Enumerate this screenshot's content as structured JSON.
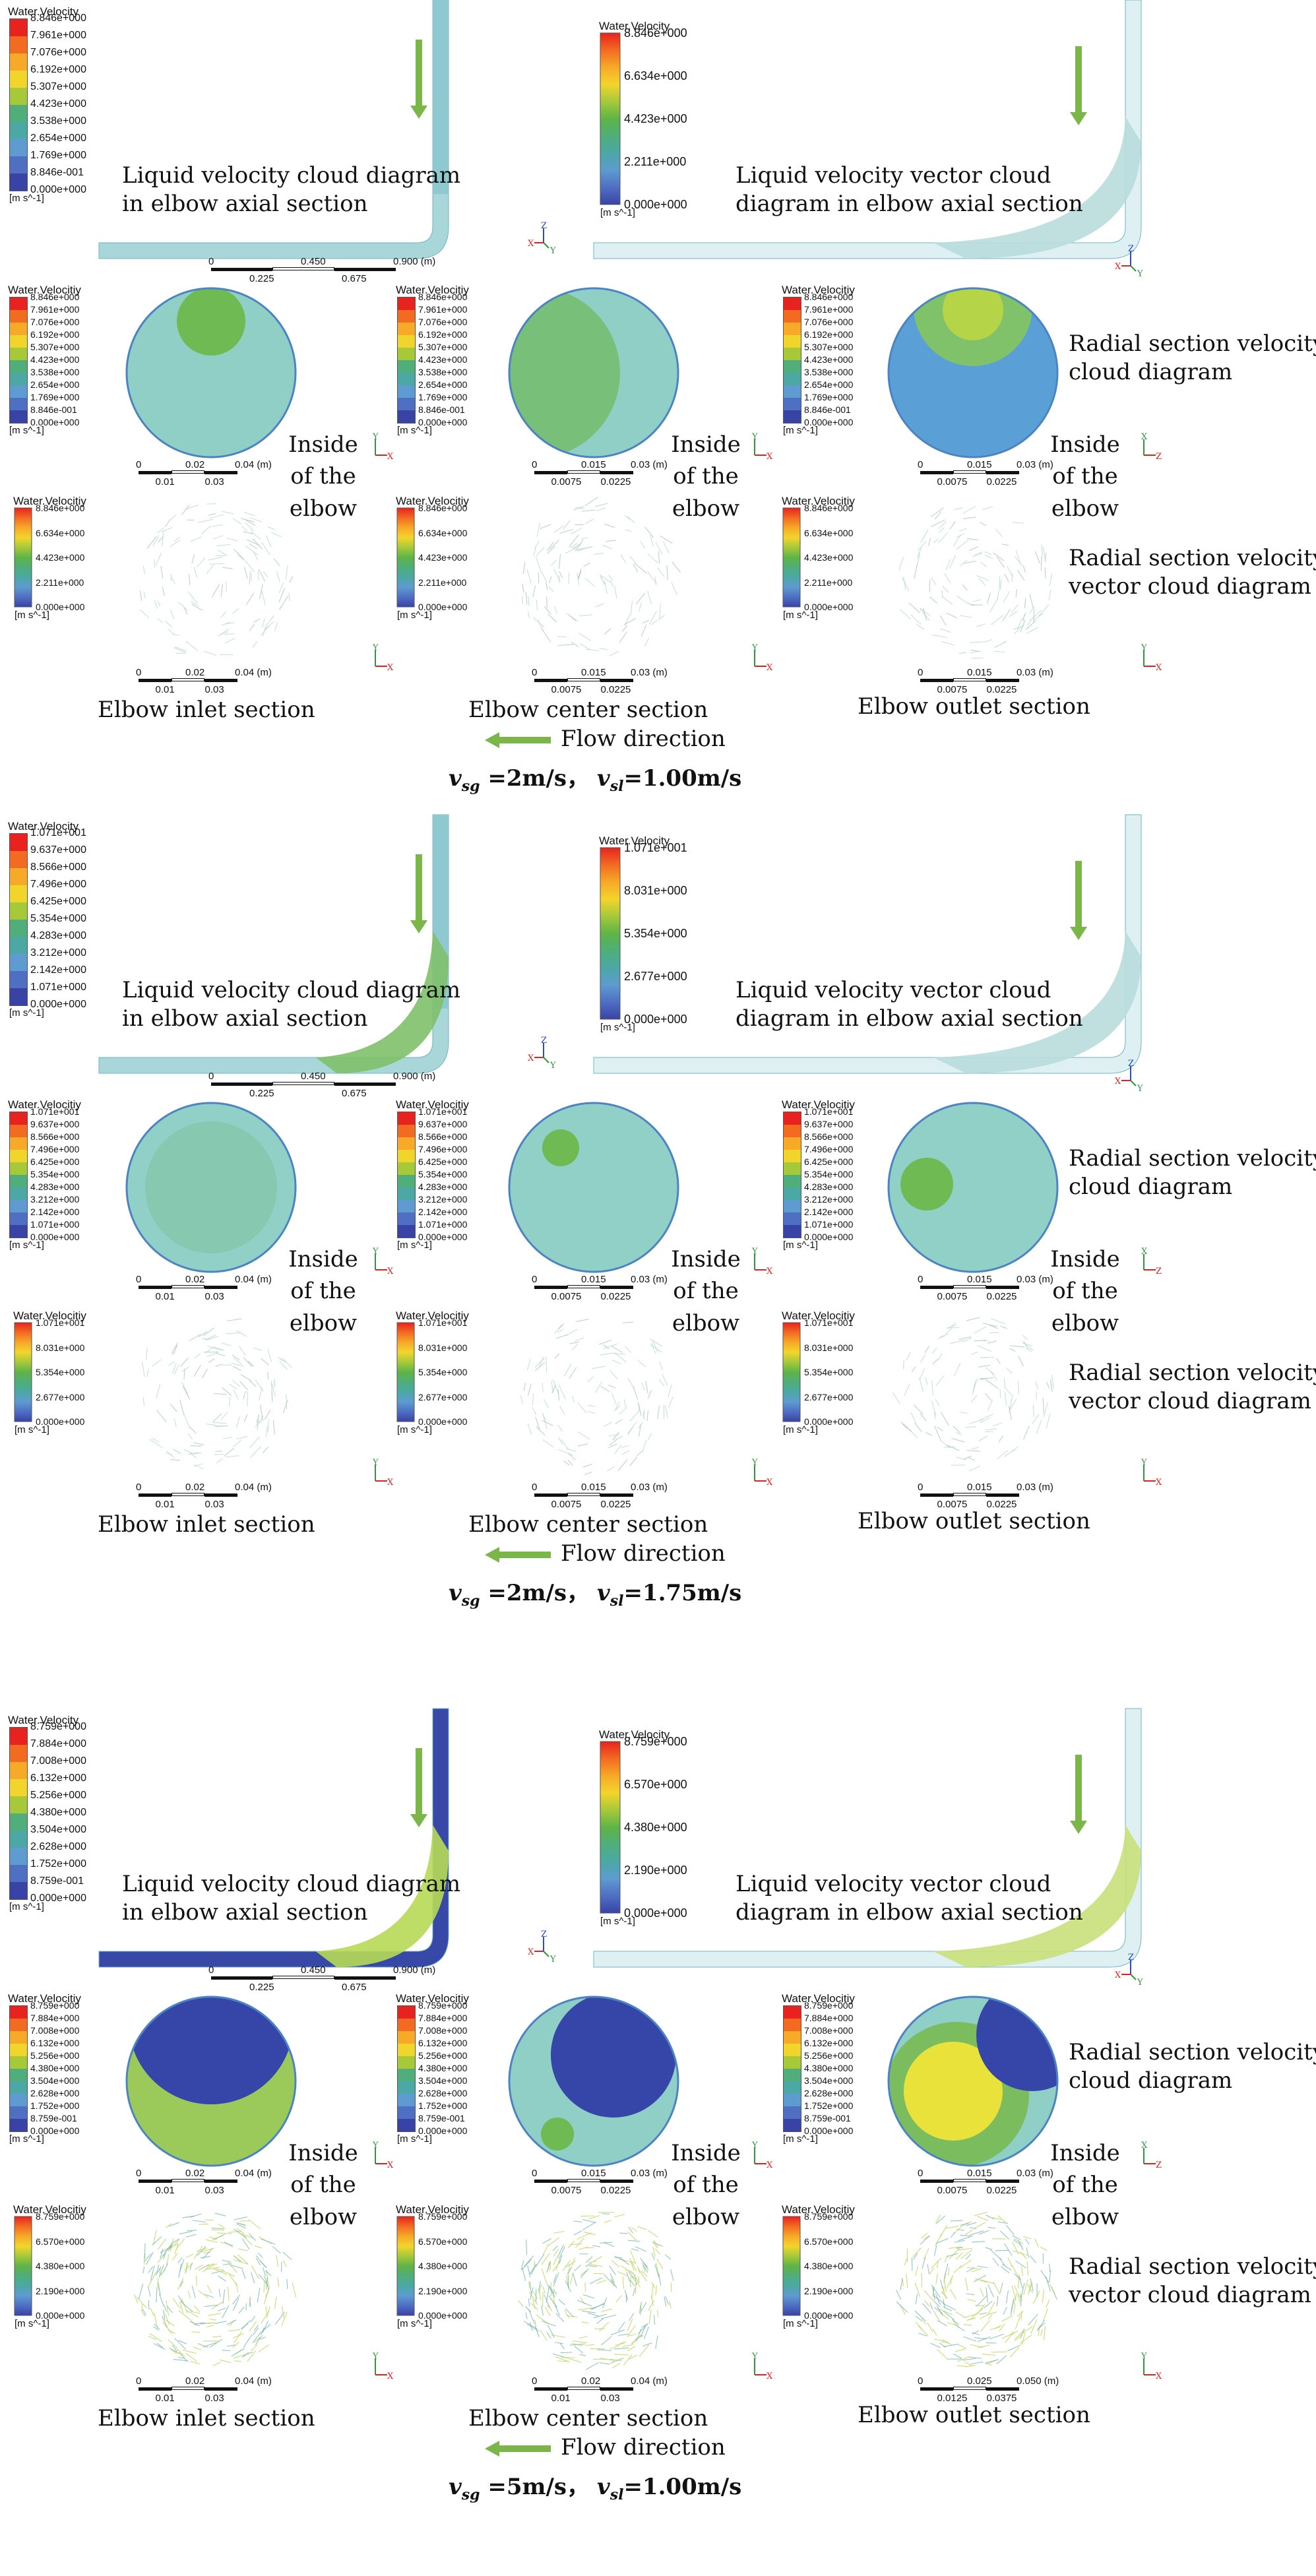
{
  "legend": {
    "title_axial": "Water.Velocity",
    "title_section": "Water.Velocitiy",
    "unit": "[m s^-1]"
  },
  "labels": {
    "axial_cloud": [
      "Liquid velocity cloud diagram",
      "in elbow axial section"
    ],
    "axial_vector": [
      "Liquid velocity vector cloud",
      "diagram in elbow axial section"
    ],
    "radial_cloud": [
      "Radial section velocity",
      "cloud diagram"
    ],
    "radial_vector": [
      "Radial section velocity",
      "vector cloud diagram"
    ],
    "inside": [
      "Inside",
      "of the",
      "elbow"
    ],
    "inlet": "Elbow inlet section",
    "center": "Elbow center section",
    "outlet": "Elbow outlet section",
    "flow": "Flow direction"
  },
  "axial_scale": {
    "top": [
      "0",
      "0.450",
      "0.900 (m)"
    ],
    "bottom": [
      "0.225",
      "0.675"
    ]
  },
  "scales": {
    "inlet": {
      "top": [
        "0",
        "0.02",
        "0.04 (m)"
      ],
      "bottom": [
        "0.01",
        "0.03"
      ]
    },
    "sm": {
      "top": [
        "0",
        "0.015",
        "0.03 (m)"
      ],
      "bottom": [
        "0.0075",
        "0.0225"
      ]
    },
    "inlet_g3": {
      "top": [
        "0",
        "0.02",
        "0.04 (m)"
      ],
      "bottom": [
        "0.01",
        "0.03"
      ]
    },
    "center_g3": {
      "top": [
        "0",
        "0.02",
        "0.04 (m)"
      ],
      "bottom": [
        "0.01",
        "0.03"
      ]
    },
    "outlet_g3": {
      "top": [
        "0",
        "0.025",
        "0.050 (m)"
      ],
      "bottom": [
        "0.0125",
        "0.0375"
      ]
    }
  },
  "axes_letters": {
    "z": "Z",
    "x": "X",
    "y": "Y"
  },
  "colors": {
    "scale": [
      "#e8231f",
      "#f26b21",
      "#f7a928",
      "#f2d52b",
      "#a6c93a",
      "#5fb446",
      "#4fae7a",
      "#4ba8a5",
      "#5e9bd0",
      "#4f6fc3",
      "#3943a6"
    ],
    "pipe_light": "#a9d6d9",
    "pipe_dark": "#3748a6",
    "green_arrow": "#7ab648",
    "outline": "#4b83c4"
  },
  "groups": [
    {
      "equation": {
        "vsg": "=2m/s，",
        "vsl": "=1.00m/s"
      },
      "axial_ticks": [
        "8.846e+000",
        "7.961e+000",
        "7.076e+000",
        "6.192e+000",
        "5.307e+000",
        "4.423e+000",
        "3.538e+000",
        "2.654e+000",
        "1.769e+000",
        "8.846e-001",
        "0.000e+000"
      ],
      "vector_ticks": [
        "8.846e+000",
        "6.634e+000",
        "4.423e+000",
        "2.211e+000",
        "0.000e+000"
      ],
      "section_ticks": [
        "8.846e+000",
        "7.961e+000",
        "7.076e+000",
        "6.192e+000",
        "5.307e+000",
        "4.423e+000",
        "3.538e+000",
        "2.654e+000",
        "1.769e+000",
        "8.846e-001",
        "0.000e+000"
      ],
      "section_vec_ticks": [
        "8.846e+000",
        "6.634e+000",
        "4.423e+000",
        "2.211e+000",
        "0.000e+000"
      ]
    },
    {
      "equation": {
        "vsg": "=2m/s，",
        "vsl": "=1.75m/s"
      },
      "axial_ticks": [
        "1.071e+001",
        "9.637e+000",
        "8.566e+000",
        "7.496e+000",
        "6.425e+000",
        "5.354e+000",
        "4.283e+000",
        "3.212e+000",
        "2.142e+000",
        "1.071e+000",
        "0.000e+000"
      ],
      "vector_ticks": [
        "1.071e+001",
        "8.031e+000",
        "5.354e+000",
        "2.677e+000",
        "0.000e+000"
      ],
      "section_ticks": [
        "1.071e+001",
        "9.637e+000",
        "8.566e+000",
        "7.496e+000",
        "6.425e+000",
        "5.354e+000",
        "4.283e+000",
        "3.212e+000",
        "2.142e+000",
        "1.071e+000",
        "0.000e+000"
      ],
      "section_vec_ticks": [
        "1.071e+001",
        "8.031e+000",
        "5.354e+000",
        "2.677e+000",
        "0.000e+000"
      ]
    },
    {
      "equation": {
        "vsg": "=5m/s，",
        "vsl": "=1.00m/s"
      },
      "axial_ticks": [
        "8.759e+000",
        "7.884e+000",
        "7.008e+000",
        "6.132e+000",
        "5.256e+000",
        "4.380e+000",
        "3.504e+000",
        "2.628e+000",
        "1.752e+000",
        "8.759e-001",
        "0.000e+000"
      ],
      "vector_ticks": [
        "8.759e+000",
        "6.570e+000",
        "4.380e+000",
        "2.190e+000",
        "0.000e+000"
      ],
      "section_ticks": [
        "8.759e+000",
        "7.884e+000",
        "7.008e+000",
        "6.132e+000",
        "5.256e+000",
        "4.380e+000",
        "3.504e+000",
        "2.628e+000",
        "1.752e+000",
        "8.759e-001",
        "0.000e+000"
      ],
      "section_vec_ticks": [
        "8.759e+000",
        "6.570e+000",
        "4.380e+000",
        "2.190e+000",
        "0.000e+000"
      ]
    }
  ]
}
